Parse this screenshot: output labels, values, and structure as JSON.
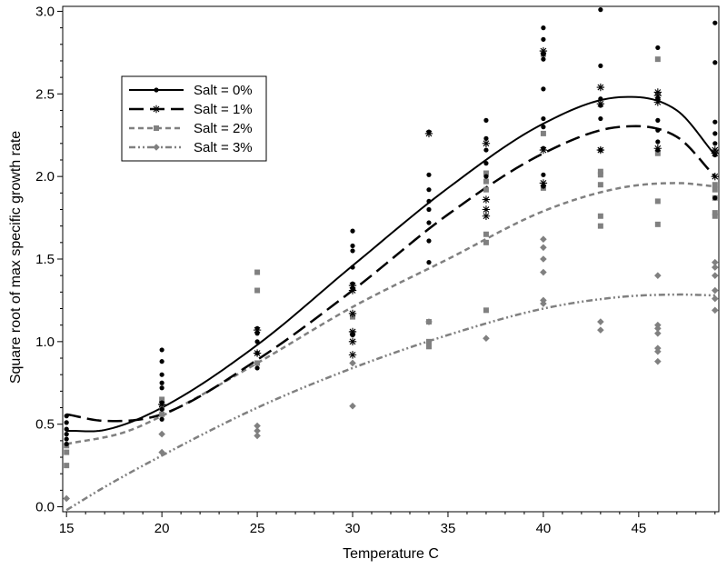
{
  "chart_data": {
    "type": "scatter",
    "title": "",
    "xlabel": "Temperature C",
    "ylabel": "Square root of max specific growth rate",
    "xlim": [
      14.8,
      49.2
    ],
    "ylim": [
      -0.03,
      3.03
    ],
    "xticks": [
      15,
      20,
      25,
      30,
      35,
      40,
      45
    ],
    "yticks": [
      0.0,
      0.5,
      1.0,
      1.5,
      2.0,
      2.5,
      3.0
    ],
    "ytick_labels": [
      "0.0",
      "0.5",
      "1.0",
      "1.5",
      "2.0",
      "2.5",
      "3.0"
    ],
    "grid": false,
    "legend_position": "top-left",
    "series": [
      {
        "name": "Salt = 0%",
        "color": "#000000",
        "marker": "circle",
        "line_style": "solid",
        "points": [
          [
            15,
            0.38
          ],
          [
            15,
            0.41
          ],
          [
            15,
            0.44
          ],
          [
            15,
            0.47
          ],
          [
            15,
            0.51
          ],
          [
            15,
            0.55
          ],
          [
            20,
            0.53
          ],
          [
            20,
            0.59
          ],
          [
            20,
            0.63
          ],
          [
            20,
            0.72
          ],
          [
            20,
            0.75
          ],
          [
            20,
            0.8
          ],
          [
            20,
            0.88
          ],
          [
            20,
            0.95
          ],
          [
            25,
            0.84
          ],
          [
            25,
            0.93
          ],
          [
            25,
            1.0
          ],
          [
            25,
            1.05
          ],
          [
            25,
            1.08
          ],
          [
            30,
            1.04
          ],
          [
            30,
            1.32
          ],
          [
            30,
            1.35
          ],
          [
            30,
            1.45
          ],
          [
            30,
            1.55
          ],
          [
            30,
            1.58
          ],
          [
            30,
            1.67
          ],
          [
            34,
            1.48
          ],
          [
            34,
            1.61
          ],
          [
            34,
            1.72
          ],
          [
            34,
            1.8
          ],
          [
            34,
            1.85
          ],
          [
            34,
            1.92
          ],
          [
            34,
            2.01
          ],
          [
            34,
            2.27
          ],
          [
            37,
            2.0
          ],
          [
            37,
            2.08
          ],
          [
            37,
            2.16
          ],
          [
            37,
            2.23
          ],
          [
            37,
            2.34
          ],
          [
            40,
            1.94
          ],
          [
            40,
            2.01
          ],
          [
            40,
            2.17
          ],
          [
            40,
            2.3
          ],
          [
            40,
            2.35
          ],
          [
            40,
            2.53
          ],
          [
            40,
            2.71
          ],
          [
            40,
            2.74
          ],
          [
            40,
            2.83
          ],
          [
            40,
            2.9
          ],
          [
            43,
            2.16
          ],
          [
            43,
            2.35
          ],
          [
            43,
            2.43
          ],
          [
            43,
            2.47
          ],
          [
            43,
            2.67
          ],
          [
            43,
            3.01
          ],
          [
            46,
            2.16
          ],
          [
            46,
            2.21
          ],
          [
            46,
            2.28
          ],
          [
            46,
            2.34
          ],
          [
            46,
            2.47
          ],
          [
            46,
            2.78
          ],
          [
            49,
            1.87
          ],
          [
            49,
            2.13
          ],
          [
            49,
            2.2
          ],
          [
            49,
            2.26
          ],
          [
            49,
            2.33
          ],
          [
            49,
            2.69
          ],
          [
            49,
            2.93
          ]
        ],
        "curve": [
          [
            15,
            0.46
          ],
          [
            17,
            0.465
          ],
          [
            20,
            0.6
          ],
          [
            25,
            0.98
          ],
          [
            30,
            1.46
          ],
          [
            35,
            1.93
          ],
          [
            40,
            2.32
          ],
          [
            44,
            2.48
          ],
          [
            47,
            2.4
          ],
          [
            49,
            2.13
          ]
        ]
      },
      {
        "name": "Salt = 1%",
        "color": "#000000",
        "marker": "asterisk",
        "line_style": "long-dash",
        "points": [
          [
            20,
            0.62
          ],
          [
            25,
            1.07
          ],
          [
            25,
            0.93
          ],
          [
            30,
            0.92
          ],
          [
            30,
            1.0
          ],
          [
            30,
            1.06
          ],
          [
            30,
            1.17
          ],
          [
            30,
            1.31
          ],
          [
            30,
            1.34
          ],
          [
            34,
            2.26
          ],
          [
            37,
            1.76
          ],
          [
            37,
            1.8
          ],
          [
            37,
            1.86
          ],
          [
            37,
            2.2
          ],
          [
            40,
            1.96
          ],
          [
            40,
            2.16
          ],
          [
            40,
            2.76
          ],
          [
            43,
            2.16
          ],
          [
            43,
            2.44
          ],
          [
            43,
            2.54
          ],
          [
            46,
            2.17
          ],
          [
            46,
            2.45
          ],
          [
            46,
            2.49
          ],
          [
            46,
            2.51
          ],
          [
            49,
            2.0
          ],
          [
            49,
            2.14
          ],
          [
            49,
            2.16
          ]
        ],
        "curve": [
          [
            15,
            0.56
          ],
          [
            17,
            0.52
          ],
          [
            20,
            0.56
          ],
          [
            25,
            0.89
          ],
          [
            30,
            1.31
          ],
          [
            35,
            1.77
          ],
          [
            40,
            2.14
          ],
          [
            44,
            2.3
          ],
          [
            47,
            2.24
          ],
          [
            49,
            2.0
          ]
        ]
      },
      {
        "name": "Salt = 2%",
        "color": "#808080",
        "marker": "square",
        "line_style": "short-dash",
        "points": [
          [
            15,
            0.25
          ],
          [
            15,
            0.33
          ],
          [
            15,
            0.37
          ],
          [
            20,
            0.56
          ],
          [
            20,
            0.6
          ],
          [
            20,
            0.65
          ],
          [
            25,
            0.87
          ],
          [
            25,
            1.31
          ],
          [
            25,
            1.42
          ],
          [
            30,
            1.05
          ],
          [
            30,
            1.15
          ],
          [
            34,
            0.97
          ],
          [
            34,
            1.0
          ],
          [
            34,
            1.12
          ],
          [
            37,
            1.19
          ],
          [
            37,
            1.6
          ],
          [
            37,
            1.65
          ],
          [
            37,
            1.92
          ],
          [
            37,
            1.97
          ],
          [
            37,
            2.02
          ],
          [
            40,
            1.93
          ],
          [
            40,
            2.26
          ],
          [
            40,
            2.74
          ],
          [
            43,
            1.7
          ],
          [
            43,
            1.76
          ],
          [
            43,
            1.95
          ],
          [
            43,
            2.01
          ],
          [
            43,
            2.03
          ],
          [
            46,
            1.71
          ],
          [
            46,
            1.85
          ],
          [
            46,
            2.14
          ],
          [
            46,
            2.71
          ],
          [
            49,
            1.76
          ],
          [
            49,
            1.78
          ],
          [
            49,
            1.87
          ],
          [
            49,
            1.92
          ],
          [
            49,
            1.95
          ]
        ],
        "curve": [
          [
            15,
            0.38
          ],
          [
            18,
            0.45
          ],
          [
            20,
            0.55
          ],
          [
            25,
            0.87
          ],
          [
            30,
            1.21
          ],
          [
            35,
            1.5
          ],
          [
            40,
            1.79
          ],
          [
            44,
            1.93
          ],
          [
            47,
            1.96
          ],
          [
            49,
            1.94
          ]
        ]
      },
      {
        "name": "Salt = 3%",
        "color": "#808080",
        "marker": "diamond",
        "line_style": "dash-dot-dot",
        "points": [
          [
            15,
            0.05
          ],
          [
            20,
            0.33
          ],
          [
            20,
            0.44
          ],
          [
            25,
            0.43
          ],
          [
            25,
            0.46
          ],
          [
            25,
            0.49
          ],
          [
            30,
            0.61
          ],
          [
            30,
            0.87
          ],
          [
            34,
            1.12
          ],
          [
            37,
            1.02
          ],
          [
            40,
            1.23
          ],
          [
            40,
            1.25
          ],
          [
            40,
            1.42
          ],
          [
            40,
            1.5
          ],
          [
            40,
            1.57
          ],
          [
            40,
            1.62
          ],
          [
            43,
            1.07
          ],
          [
            43,
            1.12
          ],
          [
            46,
            0.88
          ],
          [
            46,
            0.94
          ],
          [
            46,
            0.96
          ],
          [
            46,
            1.05
          ],
          [
            46,
            1.08
          ],
          [
            46,
            1.1
          ],
          [
            46,
            1.4
          ],
          [
            49,
            1.19
          ],
          [
            49,
            1.26
          ],
          [
            49,
            1.31
          ],
          [
            49,
            1.4
          ],
          [
            49,
            1.45
          ],
          [
            49,
            1.48
          ]
        ],
        "curve": [
          [
            15,
            -0.02
          ],
          [
            17,
            0.12
          ],
          [
            20,
            0.31
          ],
          [
            25,
            0.6
          ],
          [
            30,
            0.84
          ],
          [
            35,
            1.04
          ],
          [
            40,
            1.2
          ],
          [
            44,
            1.27
          ],
          [
            47,
            1.285
          ],
          [
            49,
            1.28
          ]
        ]
      }
    ]
  }
}
